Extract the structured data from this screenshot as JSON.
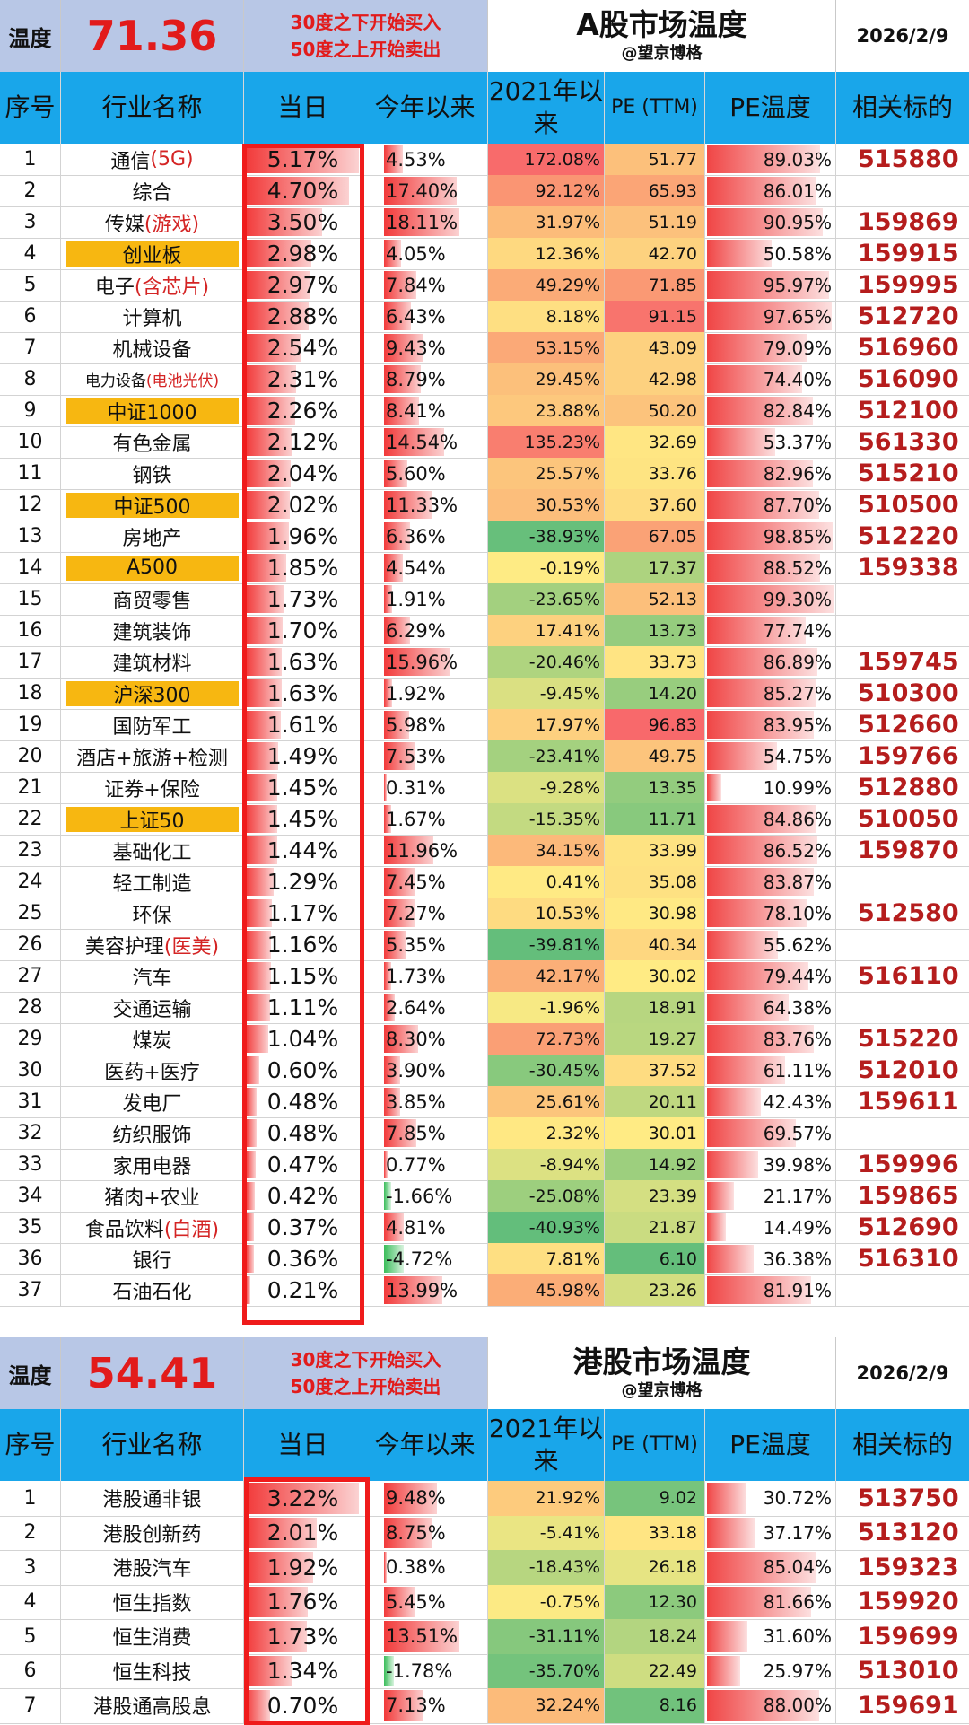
{
  "a_share": {
    "temp_label": "温度",
    "temperature": "71.36",
    "rule_buy": "30度之下开始买入",
    "rule_sell": "50度之上开始卖出",
    "title": "A股市场温度",
    "author": "@望京博格",
    "date": "2026/2/9",
    "columns": {
      "idx": "序号",
      "name": "行业名称",
      "day": "当日",
      "ytd": "今年以来",
      "since2021": "2021年以来",
      "pe": "PE (TTM)",
      "pe_temp": "PE温度",
      "etf": "相关标的"
    },
    "rows": [
      {
        "idx": "1",
        "name": "通信",
        "tag": "(5G)",
        "hl": false,
        "day": "5.17%",
        "ytd": "4.53%",
        "since2021": "172.08%",
        "pe": "51.77",
        "pe_temp": "89.03%",
        "etf": "515880"
      },
      {
        "idx": "2",
        "name": "综合",
        "tag": "",
        "hl": false,
        "day": "4.70%",
        "ytd": "17.40%",
        "since2021": "92.12%",
        "pe": "65.93",
        "pe_temp": "86.01%",
        "etf": ""
      },
      {
        "idx": "3",
        "name": "传媒",
        "tag": "(游戏)",
        "hl": false,
        "day": "3.50%",
        "ytd": "18.11%",
        "since2021": "31.97%",
        "pe": "51.19",
        "pe_temp": "90.95%",
        "etf": "159869"
      },
      {
        "idx": "4",
        "name": "创业板",
        "tag": "",
        "hl": true,
        "day": "2.98%",
        "ytd": "4.05%",
        "since2021": "12.36%",
        "pe": "42.70",
        "pe_temp": "50.58%",
        "etf": "159915"
      },
      {
        "idx": "5",
        "name": "电子",
        "tag": "(含芯片)",
        "hl": false,
        "day": "2.97%",
        "ytd": "7.84%",
        "since2021": "49.29%",
        "pe": "71.85",
        "pe_temp": "95.97%",
        "etf": "159995"
      },
      {
        "idx": "6",
        "name": "计算机",
        "tag": "",
        "hl": false,
        "day": "2.88%",
        "ytd": "6.43%",
        "since2021": "8.18%",
        "pe": "91.15",
        "pe_temp": "97.65%",
        "etf": "512720"
      },
      {
        "idx": "7",
        "name": "机械设备",
        "tag": "",
        "hl": false,
        "day": "2.54%",
        "ytd": "9.43%",
        "since2021": "53.15%",
        "pe": "43.09",
        "pe_temp": "79.09%",
        "etf": "516960"
      },
      {
        "idx": "8",
        "name": "电力设备",
        "tag": "(电池光伏)",
        "hl": false,
        "day": "2.31%",
        "ytd": "8.79%",
        "since2021": "29.45%",
        "pe": "42.98",
        "pe_temp": "74.40%",
        "etf": "516090"
      },
      {
        "idx": "9",
        "name": "中证1000",
        "tag": "",
        "hl": true,
        "day": "2.26%",
        "ytd": "8.41%",
        "since2021": "23.88%",
        "pe": "50.20",
        "pe_temp": "82.84%",
        "etf": "512100"
      },
      {
        "idx": "10",
        "name": "有色金属",
        "tag": "",
        "hl": false,
        "day": "2.12%",
        "ytd": "14.54%",
        "since2021": "135.23%",
        "pe": "32.69",
        "pe_temp": "53.37%",
        "etf": "561330"
      },
      {
        "idx": "11",
        "name": "钢铁",
        "tag": "",
        "hl": false,
        "day": "2.04%",
        "ytd": "5.60%",
        "since2021": "25.57%",
        "pe": "33.76",
        "pe_temp": "82.96%",
        "etf": "515210"
      },
      {
        "idx": "12",
        "name": "中证500",
        "tag": "",
        "hl": true,
        "day": "2.02%",
        "ytd": "11.33%",
        "since2021": "30.53%",
        "pe": "37.60",
        "pe_temp": "87.70%",
        "etf": "510500"
      },
      {
        "idx": "13",
        "name": "房地产",
        "tag": "",
        "hl": false,
        "day": "1.96%",
        "ytd": "6.36%",
        "since2021": "-38.93%",
        "pe": "67.05",
        "pe_temp": "98.85%",
        "etf": "512220"
      },
      {
        "idx": "14",
        "name": "A500",
        "tag": "",
        "hl": true,
        "day": "1.85%",
        "ytd": "4.54%",
        "since2021": "-0.19%",
        "pe": "17.37",
        "pe_temp": "88.52%",
        "etf": "159338"
      },
      {
        "idx": "15",
        "name": "商贸零售",
        "tag": "",
        "hl": false,
        "day": "1.73%",
        "ytd": "1.91%",
        "since2021": "-23.65%",
        "pe": "52.13",
        "pe_temp": "99.30%",
        "etf": ""
      },
      {
        "idx": "16",
        "name": "建筑装饰",
        "tag": "",
        "hl": false,
        "day": "1.70%",
        "ytd": "6.29%",
        "since2021": "17.41%",
        "pe": "13.73",
        "pe_temp": "77.74%",
        "etf": ""
      },
      {
        "idx": "17",
        "name": "建筑材料",
        "tag": "",
        "hl": false,
        "day": "1.63%",
        "ytd": "15.96%",
        "since2021": "-20.46%",
        "pe": "33.73",
        "pe_temp": "86.89%",
        "etf": "159745"
      },
      {
        "idx": "18",
        "name": "沪深300",
        "tag": "",
        "hl": true,
        "day": "1.63%",
        "ytd": "1.92%",
        "since2021": "-9.45%",
        "pe": "14.20",
        "pe_temp": "85.27%",
        "etf": "510300"
      },
      {
        "idx": "19",
        "name": "国防军工",
        "tag": "",
        "hl": false,
        "day": "1.61%",
        "ytd": "5.98%",
        "since2021": "17.97%",
        "pe": "96.83",
        "pe_temp": "83.95%",
        "etf": "512660"
      },
      {
        "idx": "20",
        "name": "酒店+旅游+检测",
        "tag": "",
        "hl": false,
        "day": "1.49%",
        "ytd": "7.53%",
        "since2021": "-23.41%",
        "pe": "49.75",
        "pe_temp": "54.75%",
        "etf": "159766"
      },
      {
        "idx": "21",
        "name": "证券+保险",
        "tag": "",
        "hl": false,
        "day": "1.45%",
        "ytd": "0.31%",
        "since2021": "-9.28%",
        "pe": "13.35",
        "pe_temp": "10.99%",
        "etf": "512880"
      },
      {
        "idx": "22",
        "name": "上证50",
        "tag": "",
        "hl": true,
        "day": "1.45%",
        "ytd": "1.67%",
        "since2021": "-15.35%",
        "pe": "11.71",
        "pe_temp": "84.86%",
        "etf": "510050"
      },
      {
        "idx": "23",
        "name": "基础化工",
        "tag": "",
        "hl": false,
        "day": "1.44%",
        "ytd": "11.96%",
        "since2021": "34.15%",
        "pe": "33.99",
        "pe_temp": "86.52%",
        "etf": "159870"
      },
      {
        "idx": "24",
        "name": "轻工制造",
        "tag": "",
        "hl": false,
        "day": "1.29%",
        "ytd": "7.45%",
        "since2021": "0.41%",
        "pe": "35.08",
        "pe_temp": "83.87%",
        "etf": ""
      },
      {
        "idx": "25",
        "name": "环保",
        "tag": "",
        "hl": false,
        "day": "1.17%",
        "ytd": "7.27%",
        "since2021": "10.53%",
        "pe": "30.98",
        "pe_temp": "78.10%",
        "etf": "512580"
      },
      {
        "idx": "26",
        "name": "美容护理",
        "tag": "(医美)",
        "hl": false,
        "day": "1.16%",
        "ytd": "5.35%",
        "since2021": "-39.81%",
        "pe": "40.34",
        "pe_temp": "55.62%",
        "etf": ""
      },
      {
        "idx": "27",
        "name": "汽车",
        "tag": "",
        "hl": false,
        "day": "1.15%",
        "ytd": "1.73%",
        "since2021": "42.17%",
        "pe": "30.02",
        "pe_temp": "79.44%",
        "etf": "516110"
      },
      {
        "idx": "28",
        "name": "交通运输",
        "tag": "",
        "hl": false,
        "day": "1.11%",
        "ytd": "2.64%",
        "since2021": "-1.96%",
        "pe": "18.91",
        "pe_temp": "64.38%",
        "etf": ""
      },
      {
        "idx": "29",
        "name": "煤炭",
        "tag": "",
        "hl": false,
        "day": "1.04%",
        "ytd": "8.30%",
        "since2021": "72.73%",
        "pe": "19.27",
        "pe_temp": "83.76%",
        "etf": "515220"
      },
      {
        "idx": "30",
        "name": "医药+医疗",
        "tag": "",
        "hl": false,
        "day": "0.60%",
        "ytd": "3.90%",
        "since2021": "-30.45%",
        "pe": "37.52",
        "pe_temp": "61.11%",
        "etf": "512010"
      },
      {
        "idx": "31",
        "name": "发电厂",
        "tag": "",
        "hl": false,
        "day": "0.48%",
        "ytd": "3.85%",
        "since2021": "25.61%",
        "pe": "20.11",
        "pe_temp": "42.43%",
        "etf": "159611"
      },
      {
        "idx": "32",
        "name": "纺织服饰",
        "tag": "",
        "hl": false,
        "day": "0.48%",
        "ytd": "7.85%",
        "since2021": "2.32%",
        "pe": "30.01",
        "pe_temp": "69.57%",
        "etf": ""
      },
      {
        "idx": "33",
        "name": "家用电器",
        "tag": "",
        "hl": false,
        "day": "0.47%",
        "ytd": "0.77%",
        "since2021": "-8.94%",
        "pe": "14.92",
        "pe_temp": "39.98%",
        "etf": "159996"
      },
      {
        "idx": "34",
        "name": "猪肉+农业",
        "tag": "",
        "hl": false,
        "day": "0.42%",
        "ytd": "-1.66%",
        "since2021": "-25.08%",
        "pe": "23.39",
        "pe_temp": "21.17%",
        "etf": "159865"
      },
      {
        "idx": "35",
        "name": "食品饮料",
        "tag": "(白酒)",
        "hl": false,
        "day": "0.37%",
        "ytd": "4.81%",
        "since2021": "-40.93%",
        "pe": "21.87",
        "pe_temp": "14.49%",
        "etf": "512690"
      },
      {
        "idx": "36",
        "name": "银行",
        "tag": "",
        "hl": false,
        "day": "0.36%",
        "ytd": "-4.72%",
        "since2021": "7.81%",
        "pe": "6.10",
        "pe_temp": "36.38%",
        "etf": "516310"
      },
      {
        "idx": "37",
        "name": "石油石化",
        "tag": "",
        "hl": false,
        "day": "0.21%",
        "ytd": "13.99%",
        "since2021": "45.98%",
        "pe": "23.26",
        "pe_temp": "81.91%",
        "etf": ""
      }
    ]
  },
  "hk_share": {
    "temp_label": "温度",
    "temperature": "54.41",
    "rule_buy": "30度之下开始买入",
    "rule_sell": "50度之上开始卖出",
    "title": "港股市场温度",
    "author": "@望京博格",
    "date": "2026/2/9",
    "columns": {
      "idx": "序号",
      "name": "行业名称",
      "day": "当日",
      "ytd": "今年以来",
      "since2021": "2021年以来",
      "pe": "PE (TTM)",
      "pe_temp": "PE温度",
      "etf": "相关标的"
    },
    "rows": [
      {
        "idx": "1",
        "name": "港股通非银",
        "tag": "",
        "hl": false,
        "day": "3.22%",
        "ytd": "9.48%",
        "since2021": "21.92%",
        "pe": "9.02",
        "pe_temp": "30.72%",
        "etf": "513750"
      },
      {
        "idx": "2",
        "name": "港股创新药",
        "tag": "",
        "hl": false,
        "day": "2.01%",
        "ytd": "8.75%",
        "since2021": "-5.41%",
        "pe": "33.18",
        "pe_temp": "37.17%",
        "etf": "513120"
      },
      {
        "idx": "3",
        "name": "港股汽车",
        "tag": "",
        "hl": false,
        "day": "1.92%",
        "ytd": "0.38%",
        "since2021": "-18.43%",
        "pe": "26.18",
        "pe_temp": "85.04%",
        "etf": "159323"
      },
      {
        "idx": "4",
        "name": "恒生指数",
        "tag": "",
        "hl": false,
        "day": "1.76%",
        "ytd": "5.45%",
        "since2021": "-0.75%",
        "pe": "12.30",
        "pe_temp": "81.66%",
        "etf": "159920"
      },
      {
        "idx": "5",
        "name": "恒生消费",
        "tag": "",
        "hl": false,
        "day": "1.73%",
        "ytd": "13.51%",
        "since2021": "-31.11%",
        "pe": "18.24",
        "pe_temp": "31.60%",
        "etf": "159699"
      },
      {
        "idx": "6",
        "name": "恒生科技",
        "tag": "",
        "hl": false,
        "day": "1.34%",
        "ytd": "-1.78%",
        "since2021": "-35.70%",
        "pe": "22.49",
        "pe_temp": "25.97%",
        "etf": "513010"
      },
      {
        "idx": "7",
        "name": "港股通高股息",
        "tag": "",
        "hl": false,
        "day": "0.70%",
        "ytd": "7.13%",
        "since2021": "32.24%",
        "pe": "8.16",
        "pe_temp": "88.00%",
        "etf": "159691"
      }
    ]
  }
}
